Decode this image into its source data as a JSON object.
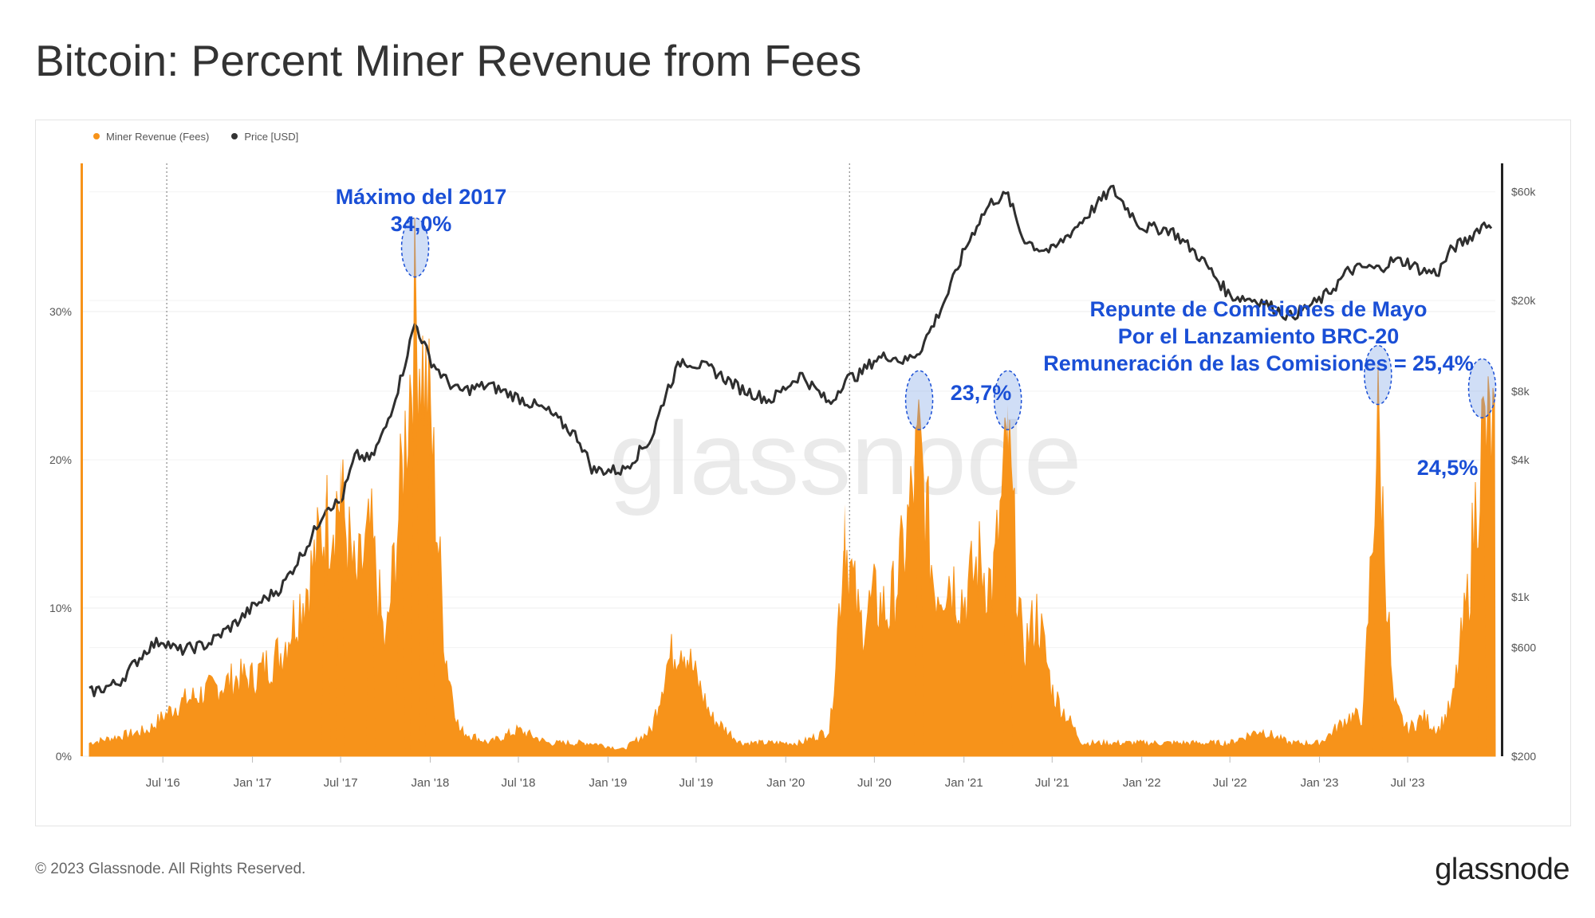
{
  "title": "Bitcoin: Percent Miner Revenue from Fees",
  "footer": "© 2023 Glassnode. All Rights Reserved.",
  "brand": "glassnode",
  "watermark": "glassnode",
  "legend": [
    {
      "label": "Miner Revenue (Fees)",
      "color": "#f7931a"
    },
    {
      "label": "Price [USD]",
      "color": "#333333"
    }
  ],
  "annotations": {
    "peak_2017_line1": "Máximo del 2017",
    "peak_2017_line2": "34,0%",
    "peak_2021": "23,7%",
    "brc20_line1": "Repunte de Comisiones de Mayo",
    "brc20_line2": "Por el Lanzamiento BRC-20",
    "brc20_line3": "Remuneración de las Comisiones = 25,4%",
    "late_2023": "24,5%"
  },
  "chart_data": {
    "type": "area",
    "x_ticks": [
      "Jul '16",
      "Jan '17",
      "Jul '17",
      "Jan '18",
      "Jul '18",
      "Jan '19",
      "Jul '19",
      "Jan '20",
      "Jul '20",
      "Jan '21",
      "Jul '21",
      "Jan '22",
      "Jul '22",
      "Jan '23",
      "Jul '23"
    ],
    "y_left_ticks": [
      "0%",
      "10%",
      "20%",
      "30%"
    ],
    "y_right_ticks": [
      "$200",
      "$600",
      "$1k",
      "$4k",
      "$8k",
      "$20k",
      "$60k"
    ],
    "y_left_range": [
      0,
      40
    ],
    "y_right_scale": "log",
    "y_right_range": [
      200,
      80000
    ],
    "halving_markers": [
      "2016-07-09",
      "2020-05-11"
    ],
    "series": [
      {
        "name": "Miner Revenue (Fees)",
        "axis": "left",
        "color": "#f7931a",
        "x": [
          "2016-02",
          "2016-04",
          "2016-06",
          "2016-07",
          "2016-08",
          "2016-10",
          "2016-12",
          "2017-01",
          "2017-03",
          "2017-05",
          "2017-06",
          "2017-07",
          "2017-08",
          "2017-09",
          "2017-10",
          "2017-11",
          "2017-12",
          "2018-01",
          "2018-02",
          "2018-03",
          "2018-05",
          "2018-07",
          "2018-09",
          "2018-11",
          "2018-12",
          "2019-02",
          "2019-04",
          "2019-05",
          "2019-06",
          "2019-07",
          "2019-08",
          "2019-10",
          "2019-12",
          "2020-02",
          "2020-04",
          "2020-05",
          "2020-06",
          "2020-07",
          "2020-08",
          "2020-09",
          "2020-10",
          "2020-11",
          "2020-12",
          "2021-01",
          "2021-02",
          "2021-03",
          "2021-04",
          "2021-05",
          "2021-06",
          "2021-07",
          "2021-09",
          "2021-11",
          "2022-01",
          "2022-03",
          "2022-05",
          "2022-07",
          "2022-09",
          "2022-11",
          "2023-01",
          "2023-02",
          "2023-03",
          "2023-04",
          "2023-05",
          "2023-06",
          "2023-07",
          "2023-08",
          "2023-09",
          "2023-10",
          "2023-11",
          "2023-12"
        ],
        "values": [
          1,
          1.5,
          2,
          3,
          4,
          5,
          6,
          6,
          8,
          14,
          18,
          20,
          13,
          17,
          8,
          20,
          34,
          26,
          8,
          2,
          1,
          2,
          1,
          1,
          1,
          0.5,
          2,
          7,
          9,
          6,
          3,
          1,
          1,
          1,
          2,
          17,
          10,
          12,
          11,
          16,
          23.7,
          13,
          14,
          12,
          15,
          13,
          23.7,
          8,
          11,
          5,
          1,
          1,
          1,
          1,
          1,
          1,
          2,
          1,
          1,
          2,
          3,
          3,
          25.4,
          4,
          2,
          3,
          2,
          4,
          12,
          24.5
        ]
      },
      {
        "name": "Price [USD]",
        "axis": "right",
        "color": "#333333",
        "x": [
          "2016-02",
          "2016-04",
          "2016-06",
          "2016-07",
          "2016-08",
          "2016-10",
          "2016-12",
          "2017-01",
          "2017-03",
          "2017-05",
          "2017-06",
          "2017-07",
          "2017-08",
          "2017-09",
          "2017-10",
          "2017-11",
          "2017-12",
          "2018-01",
          "2018-02",
          "2018-03",
          "2018-05",
          "2018-07",
          "2018-09",
          "2018-11",
          "2018-12",
          "2019-02",
          "2019-04",
          "2019-05",
          "2019-06",
          "2019-07",
          "2019-08",
          "2019-10",
          "2019-12",
          "2020-02",
          "2020-04",
          "2020-05",
          "2020-06",
          "2020-07",
          "2020-08",
          "2020-09",
          "2020-10",
          "2020-11",
          "2020-12",
          "2021-01",
          "2021-02",
          "2021-03",
          "2021-04",
          "2021-05",
          "2021-06",
          "2021-07",
          "2021-09",
          "2021-11",
          "2022-01",
          "2022-03",
          "2022-05",
          "2022-07",
          "2022-09",
          "2022-11",
          "2023-01",
          "2023-02",
          "2023-03",
          "2023-04",
          "2023-05",
          "2023-06",
          "2023-07",
          "2023-08",
          "2023-09",
          "2023-10",
          "2023-11",
          "2023-12"
        ],
        "values": [
          380,
          420,
          600,
          650,
          580,
          620,
          780,
          900,
          1100,
          1800,
          2500,
          2600,
          4200,
          4000,
          5500,
          9000,
          16000,
          11000,
          9000,
          8000,
          8500,
          7500,
          6500,
          5000,
          3600,
          3600,
          5000,
          8000,
          11000,
          10500,
          10000,
          8200,
          7300,
          9500,
          7000,
          9000,
          9500,
          11000,
          11500,
          10800,
          12000,
          16000,
          22000,
          33000,
          45000,
          55000,
          58000,
          38000,
          34000,
          33000,
          45000,
          62000,
          42000,
          41000,
          31000,
          21000,
          20000,
          17000,
          20000,
          23000,
          27000,
          28000,
          27500,
          30000,
          29500,
          27000,
          26500,
          34000,
          37000,
          43000
        ]
      }
    ]
  }
}
